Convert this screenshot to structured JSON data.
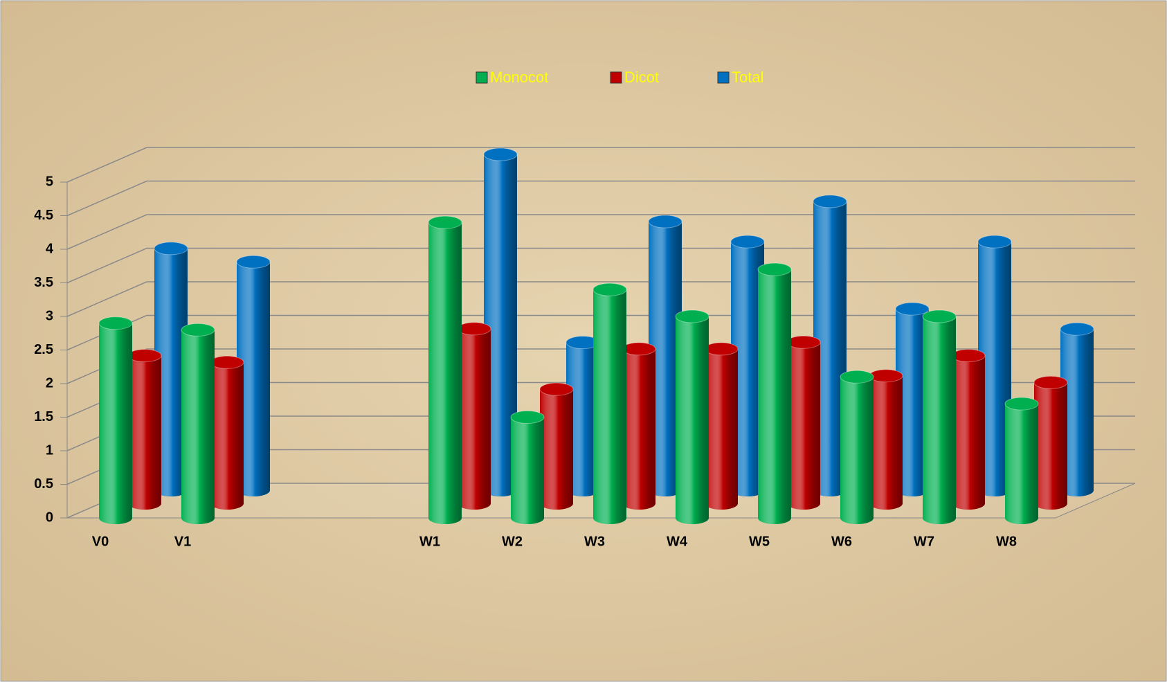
{
  "chart_data": {
    "type": "bar3d",
    "categories": [
      "V0",
      "V1",
      null,
      null,
      "W1",
      "W2",
      "W3",
      "W4",
      "W5",
      "W6",
      "W7",
      "W8"
    ],
    "series": [
      {
        "name": "Monocot",
        "color": "#00b050",
        "values": [
          2.9,
          2.8,
          null,
          null,
          4.4,
          1.5,
          3.4,
          3.0,
          3.7,
          2.1,
          3.0,
          1.7
        ]
      },
      {
        "name": "Dicot",
        "color": "#c00000",
        "values": [
          2.2,
          2.1,
          null,
          null,
          2.6,
          1.7,
          2.3,
          2.3,
          2.4,
          1.9,
          2.2,
          1.8
        ]
      },
      {
        "name": "Total",
        "color": "#0070c0",
        "values": [
          3.6,
          3.4,
          null,
          null,
          5.0,
          2.2,
          4.0,
          3.7,
          4.3,
          2.7,
          3.7,
          2.4
        ]
      }
    ],
    "ylim": [
      0,
      5
    ],
    "yticks": [
      0,
      0.5,
      1,
      1.5,
      2,
      2.5,
      3,
      3.5,
      4,
      4.5,
      5
    ],
    "grid": true,
    "legend": "top",
    "legend_text_color": "#ffff00"
  }
}
